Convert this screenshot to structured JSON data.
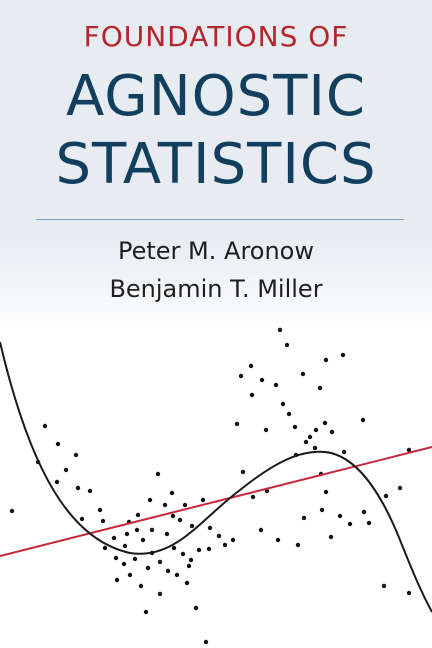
{
  "cover": {
    "series_line": "FOUNDATIONS OF",
    "title_line_1": "AGNOSTIC",
    "title_line_2": "STATISTICS",
    "authors": [
      "Peter M. Aronow",
      "Benjamin T. Miller"
    ],
    "colors": {
      "series_red": "#b3262c",
      "title_navy": "#123f5e",
      "fit_line_red": "#c8283c",
      "curve_black": "#1a1a1a"
    }
  }
}
